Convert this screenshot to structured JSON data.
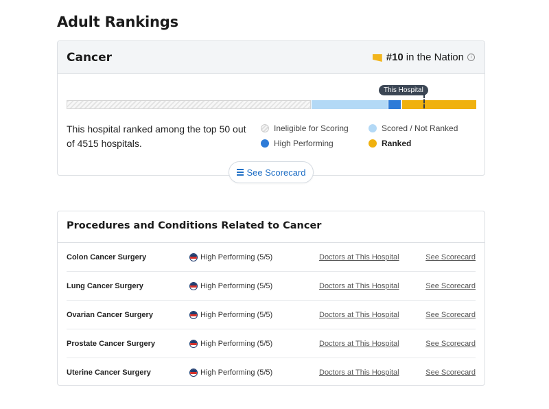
{
  "page": {
    "title": "Adult Rankings"
  },
  "ranking_card": {
    "specialty": "Cancer",
    "rank": "#10",
    "rank_suffix": "in the Nation",
    "tooltip": "This Hospital",
    "summary": "This hospital ranked among the top 50 out of 4515 hospitals.",
    "legend": {
      "ineligible": "Ineligible for Scoring",
      "scored": "Scored / Not Ranked",
      "high": "High Performing",
      "ranked": "Ranked"
    },
    "scorecard_button": "See Scorecard",
    "colors": {
      "scored": "#b3d9f6",
      "high": "#2d7bd8",
      "ranked": "#f0b10e"
    }
  },
  "procedures": {
    "title": "Procedures and Conditions Related to Cancer",
    "rows": [
      {
        "name": "Colon Cancer Surgery",
        "status": "High Performing (5/5)",
        "doctors": "Doctors at This Hospital",
        "scorecard": "See Scorecard"
      },
      {
        "name": "Lung Cancer Surgery",
        "status": "High Performing (5/5)",
        "doctors": "Doctors at This Hospital",
        "scorecard": "See Scorecard"
      },
      {
        "name": "Ovarian Cancer Surgery",
        "status": "High Performing (5/5)",
        "doctors": "Doctors at This Hospital",
        "scorecard": "See Scorecard"
      },
      {
        "name": "Prostate Cancer Surgery",
        "status": "High Performing (5/5)",
        "doctors": "Doctors at This Hospital",
        "scorecard": "See Scorecard"
      },
      {
        "name": "Uterine Cancer Surgery",
        "status": "High Performing (5/5)",
        "doctors": "Doctors at This Hospital",
        "scorecard": "See Scorecard"
      }
    ]
  }
}
